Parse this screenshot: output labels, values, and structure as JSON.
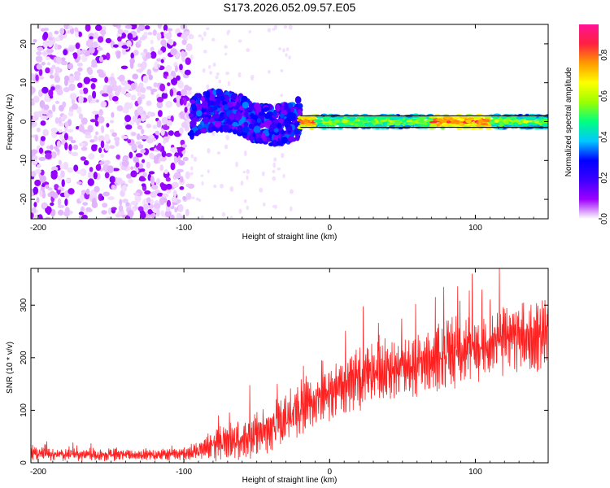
{
  "chart_data": [
    {
      "type": "heatmap",
      "title": "S173.2026.052.09.57.E05",
      "xlabel": "Height of straight line (km)",
      "ylabel": "Frequency (Hz)",
      "xlim": [
        -205,
        150
      ],
      "ylim": [
        -25,
        25
      ],
      "xticks": [
        -200,
        -100,
        0,
        100
      ],
      "yticks": [
        -20,
        -10,
        0,
        10,
        20
      ],
      "colorbar": {
        "label": "Normalized spectral amplitude",
        "range": [
          0,
          0.95
        ],
        "ticks": [
          0.0,
          0.2,
          0.4,
          0.6,
          0.8
        ],
        "tick_labels": [
          "0.0",
          "0.2",
          "0.4",
          "0.6",
          "0.8"
        ],
        "colormap_stops": [
          "#ffffff",
          "#9d00ff",
          "#3c00ff",
          "#0000ff",
          "#00c8ff",
          "#00ff80",
          "#9bff00",
          "#ffff00",
          "#ff9a00",
          "#ff2040",
          "#ff1493"
        ]
      },
      "regions": [
        {
          "x_range": [
            -205,
            -95
          ],
          "freq_range": [
            -25,
            25
          ],
          "amplitude": [
            0.02,
            0.12
          ],
          "pattern": "scattered noise"
        },
        {
          "x_range": [
            -95,
            -20
          ],
          "freq_range": [
            -6,
            8
          ],
          "amplitude": [
            0.1,
            0.35
          ],
          "pattern": "wavy band"
        },
        {
          "x_range": [
            -20,
            150
          ],
          "freq_range": [
            -1.5,
            1.5
          ],
          "amplitude": [
            0.3,
            0.95
          ],
          "pattern": "narrow band near 0 Hz"
        }
      ]
    },
    {
      "type": "line",
      "xlabel": "Height of straight line (km)",
      "ylabel": "SNR (10 * v/v)",
      "xlim": [
        -205,
        150
      ],
      "ylim": [
        0,
        370
      ],
      "xticks": [
        -200,
        -100,
        0,
        100
      ],
      "yticks": [
        0,
        100,
        200,
        300
      ],
      "series": [
        {
          "name": "SNR",
          "color": "#ff2020",
          "trend": {
            "x": [
              -205,
              -180,
              -150,
              -120,
              -100,
              -90,
              -80,
              -70,
              -60,
              -50,
              -40,
              -30,
              -20,
              -10,
              0,
              20,
              40,
              60,
              80,
              100,
              120,
              140,
              150
            ],
            "y": [
              17,
              16,
              15,
              16,
              18,
              22,
              35,
              42,
              40,
              55,
              70,
              80,
              100,
              125,
              140,
              160,
              175,
              190,
              205,
              220,
              235,
              245,
              245
            ]
          },
          "spread": {
            "x": [
              -205,
              -100,
              -90,
              -80,
              -50,
              -20,
              0,
              50,
              100,
              150
            ],
            "y": [
              12,
              12,
              18,
              30,
              45,
              55,
              60,
              60,
              65,
              70
            ]
          }
        }
      ]
    }
  ]
}
